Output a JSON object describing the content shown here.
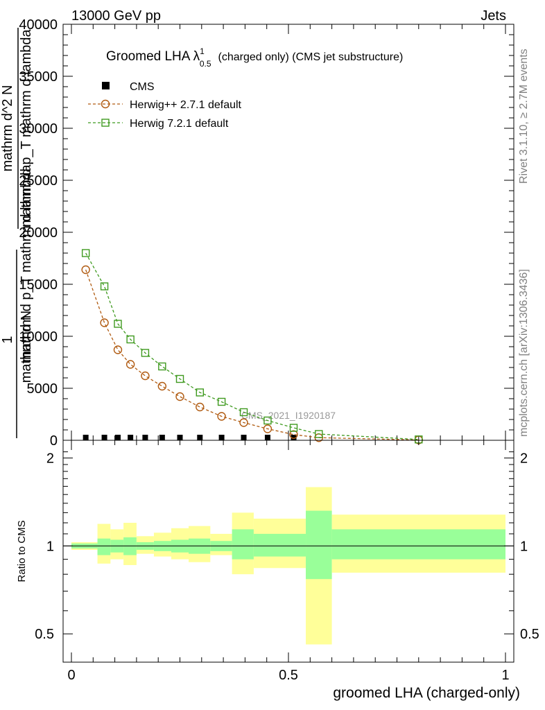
{
  "header": {
    "energy_label": "13000 GeV pp",
    "process_label": "Jets"
  },
  "side_labels": {
    "rivet": "Rivet 3.1.10, ≥ 2.7M events",
    "mcplots": "mcplots.cern.ch [arXiv:1306.3436]"
  },
  "watermark": "CMS_2021_I1920187",
  "chart_data": [
    {
      "type": "line",
      "title": "Groomed LHA λ",
      "title_superscript": "1",
      "title_subscript": "0.5",
      "title_suffix": "(charged only) (CMS jet substructure)",
      "ylabel_lines": [
        "1",
        "mathrm d N",
        "mathrm d p_T mathrm d lambda",
        "mathrm d^2 N",
        "mathrm d p_T mathrm d lambda"
      ],
      "xlim": [
        0,
        1
      ],
      "ylim": [
        0,
        40000
      ],
      "y_ticks": [
        0,
        5000,
        10000,
        15000,
        20000,
        25000,
        30000,
        35000,
        40000
      ],
      "y_tick_labels": [
        "0",
        "5000",
        "10000",
        "15000",
        "20000",
        "25000",
        "30000",
        "35000",
        "40000"
      ],
      "legend_position": "top-left",
      "series": [
        {
          "name": "CMS",
          "marker": "filled-square",
          "color": "#000000",
          "x": [
            0.033,
            0.076,
            0.107,
            0.136,
            0.17,
            0.209,
            0.25,
            0.296,
            0.346,
            0.397,
            0.452,
            0.512
          ],
          "y": [
            0,
            0,
            0,
            0,
            0,
            0,
            0,
            0,
            0,
            0,
            0,
            0
          ]
        },
        {
          "name": "Herwig++ 2.7.1 default",
          "marker": "open-circle",
          "color": "#b05a10",
          "x": [
            0.033,
            0.076,
            0.107,
            0.136,
            0.17,
            0.209,
            0.25,
            0.296,
            0.346,
            0.397,
            0.452,
            0.512,
            0.57,
            0.8
          ],
          "y": [
            16400,
            11300,
            8700,
            7300,
            6200,
            5200,
            4200,
            3200,
            2300,
            1700,
            1100,
            550,
            250,
            30
          ]
        },
        {
          "name": "Herwig 7.2.1 default",
          "marker": "open-square",
          "color": "#3f9a1f",
          "x": [
            0.033,
            0.076,
            0.107,
            0.136,
            0.17,
            0.209,
            0.25,
            0.296,
            0.346,
            0.397,
            0.452,
            0.512,
            0.57,
            0.8
          ],
          "y": [
            18000,
            14800,
            11200,
            9700,
            8400,
            7100,
            5900,
            4600,
            3700,
            2700,
            1900,
            1200,
            600,
            80
          ]
        }
      ]
    },
    {
      "type": "area",
      "title": "",
      "xlabel": "groomed LHA (charged-only)",
      "ylabel": "Ratio to CMS",
      "xlim": [
        0,
        1
      ],
      "ylim": [
        0.4,
        2.3
      ],
      "y_scale": "log",
      "x_ticks": [
        0,
        0.5,
        1
      ],
      "x_tick_labels": [
        "0",
        "0.5",
        "1"
      ],
      "y_ticks": [
        0.5,
        1,
        2
      ],
      "y_tick_labels": [
        "0.5",
        "1",
        "2"
      ],
      "reference_line": 1,
      "bands": [
        {
          "x0": 0.0,
          "x1": 0.06,
          "green": [
            0.98,
            1.02
          ],
          "yellow": [
            0.97,
            1.03
          ]
        },
        {
          "x0": 0.06,
          "x1": 0.09,
          "green": [
            0.93,
            1.06
          ],
          "yellow": [
            0.87,
            1.19
          ]
        },
        {
          "x0": 0.09,
          "x1": 0.12,
          "green": [
            0.95,
            1.05
          ],
          "yellow": [
            0.9,
            1.14
          ]
        },
        {
          "x0": 0.12,
          "x1": 0.15,
          "green": [
            0.93,
            1.07
          ],
          "yellow": [
            0.86,
            1.2
          ]
        },
        {
          "x0": 0.15,
          "x1": 0.19,
          "green": [
            0.97,
            1.03
          ],
          "yellow": [
            0.94,
            1.08
          ]
        },
        {
          "x0": 0.19,
          "x1": 0.23,
          "green": [
            0.96,
            1.04
          ],
          "yellow": [
            0.92,
            1.11
          ]
        },
        {
          "x0": 0.23,
          "x1": 0.27,
          "green": [
            0.95,
            1.05
          ],
          "yellow": [
            0.9,
            1.15
          ]
        },
        {
          "x0": 0.27,
          "x1": 0.32,
          "green": [
            0.94,
            1.06
          ],
          "yellow": [
            0.88,
            1.17
          ]
        },
        {
          "x0": 0.32,
          "x1": 0.37,
          "green": [
            0.96,
            1.04
          ],
          "yellow": [
            0.93,
            1.1
          ]
        },
        {
          "x0": 0.37,
          "x1": 0.42,
          "green": [
            0.9,
            1.14
          ],
          "yellow": [
            0.8,
            1.3
          ]
        },
        {
          "x0": 0.42,
          "x1": 0.54,
          "green": [
            0.92,
            1.1
          ],
          "yellow": [
            0.84,
            1.24
          ]
        },
        {
          "x0": 0.54,
          "x1": 0.6,
          "green": [
            0.77,
            1.32
          ],
          "yellow": [
            0.46,
            1.59
          ]
        },
        {
          "x0": 0.6,
          "x1": 1.0,
          "green": [
            0.9,
            1.14
          ],
          "yellow": [
            0.81,
            1.28
          ]
        }
      ]
    }
  ],
  "colors": {
    "band_green": "#99ff99",
    "band_yellow": "#ffff99",
    "watermark": "#999999",
    "side_text": "#808080"
  }
}
